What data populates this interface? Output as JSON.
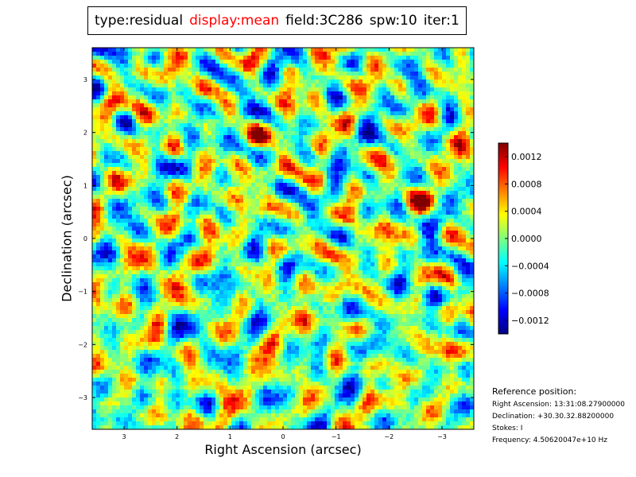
{
  "header": {
    "type": "type:residual",
    "display": "display:mean",
    "field": "field:3C286",
    "spw": "spw:10",
    "iter": "iter:1"
  },
  "chart_data": {
    "type": "heatmap",
    "title": "",
    "xlabel": "Right Ascension (arcsec)",
    "ylabel": "Declination (arcsec)",
    "xlim": [
      3.6,
      -3.6
    ],
    "ylim": [
      -3.6,
      3.6
    ],
    "x_ticks": [
      3,
      2,
      1,
      0,
      -1,
      -2,
      -3
    ],
    "x_tick_labels": [
      "3",
      "2",
      "1",
      "0",
      "−1",
      "−2",
      "−3"
    ],
    "y_ticks": [
      -3,
      -2,
      -1,
      0,
      1,
      2,
      3
    ],
    "y_tick_labels": [
      "−3",
      "−2",
      "−1",
      "0",
      "1",
      "2",
      "3"
    ],
    "colormap": "jet",
    "value_range": [
      -0.0014,
      0.0014
    ],
    "colorbar_ticks": [
      -0.0012,
      -0.0008,
      -0.0004,
      0.0,
      0.0004,
      0.0008,
      0.0012
    ],
    "colorbar_tick_labels": [
      "−0.0012",
      "−0.0008",
      "−0.0004",
      "0.0000",
      "0.0004",
      "0.0008",
      "0.0012"
    ],
    "colorbar_position": "right"
  },
  "reference": {
    "heading": "Reference position:",
    "ra": "Right Ascension: 13:31:08.27900000",
    "dec": "Declination: +30.30.32.88200000",
    "stokes": "Stokes: I",
    "frequency": "Frequency: 4.50620047e+10 Hz"
  }
}
